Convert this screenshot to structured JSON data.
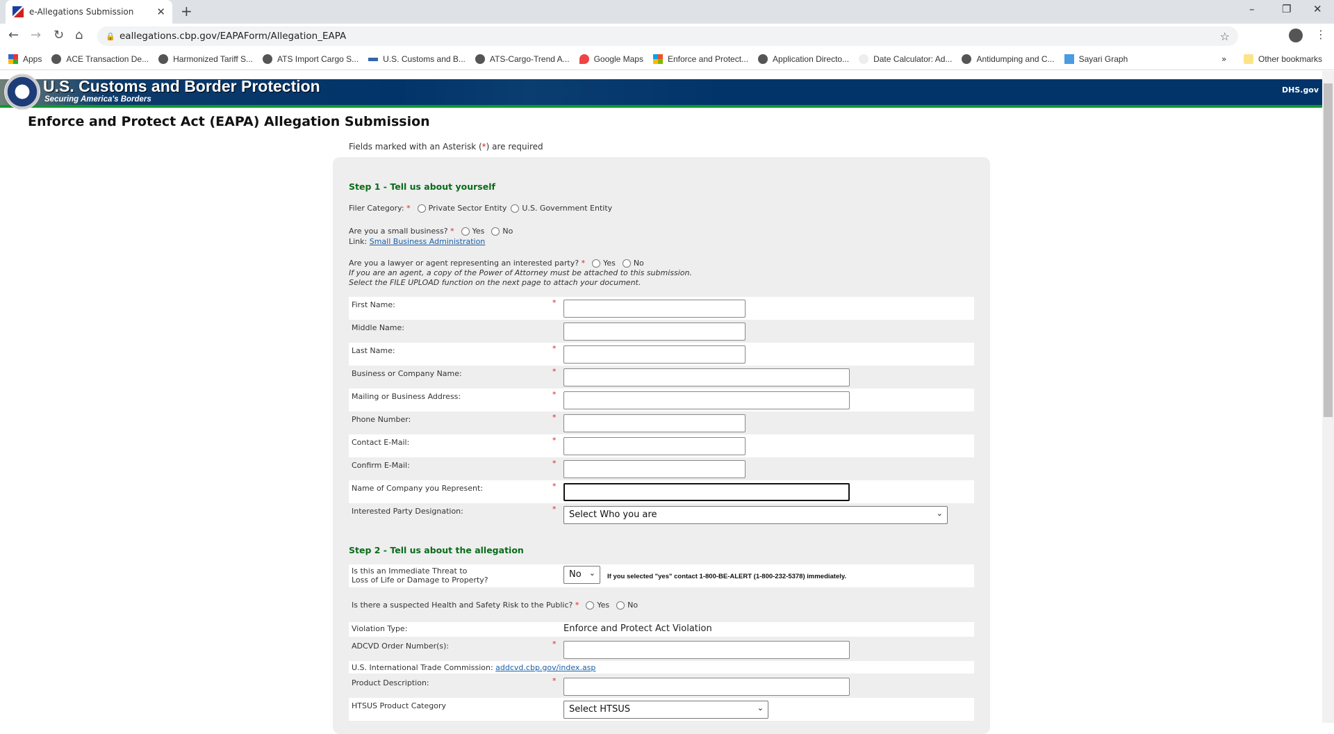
{
  "browser": {
    "tab_title": "e-Allegations Submission",
    "url": "eallegations.cbp.gov/EAPAForm/Allegation_EAPA",
    "bookmarks": [
      "Apps",
      "ACE Transaction De...",
      "Harmonized Tariff S...",
      "ATS Import Cargo S...",
      "U.S. Customs and B...",
      "ATS-Cargo-Trend A...",
      "Google Maps",
      "Enforce and Protect...",
      "Application Directo...",
      "Date Calculator: Ad...",
      "Antidumping and C...",
      "Sayari Graph"
    ],
    "more": "»",
    "other_bookmarks": "Other bookmarks"
  },
  "banner": {
    "title": "U.S. Customs and Border Protection",
    "subtitle": "Securing America's Borders",
    "dhs_link": "DHS.gov"
  },
  "page": {
    "title": "Enforce and Protect Act (EAPA) Allegation Submission",
    "required_note_pre": "Fields marked with an Asterisk (",
    "required_note_star": "*",
    "required_note_post": ") are required"
  },
  "step1": {
    "heading": "Step 1 - Tell us about yourself",
    "filer_label": "Filer Category:",
    "filer_options": [
      "Private Sector Entity",
      "U.S. Government Entity"
    ],
    "small_business_label": "Are you a small business?",
    "yes": "Yes",
    "no": "No",
    "link_label": "Link:",
    "sba_link": "Small Business Administration",
    "lawyer_label": "Are you a lawyer or agent representing an interested party?",
    "agent_note_1": "If you are an agent, a copy of the Power of Attorney must be attached to this submission.",
    "agent_note_2": "Select the FILE UPLOAD function on the next page to attach your document.",
    "fields": [
      {
        "label": "First Name:",
        "required": true,
        "value": ""
      },
      {
        "label": "Middle Name:",
        "required": false,
        "value": ""
      },
      {
        "label": "Last Name:",
        "required": true,
        "value": ""
      },
      {
        "label": "Business or Company Name:",
        "required": true,
        "value": ""
      },
      {
        "label": "Mailing or Business Address:",
        "required": true,
        "value": ""
      },
      {
        "label": "Phone Number:",
        "required": true,
        "value": ""
      },
      {
        "label": "Contact E-Mail:",
        "required": true,
        "value": ""
      },
      {
        "label": "Confirm E-Mail:",
        "required": true,
        "value": ""
      },
      {
        "label": "Name of Company you Represent:",
        "required": true,
        "value": ""
      },
      {
        "label": "Interested Party Designation:",
        "required": true,
        "value": "Select Who you are"
      }
    ]
  },
  "step2": {
    "heading": "Step 2 - Tell us about the allegation",
    "threat_label_1": "Is this an Immediate Threat to",
    "threat_label_2": "Loss of Life or Damage to Property?",
    "threat_value": "No",
    "threat_note": "If you selected \"yes\" contact 1-800-BE-ALERT (1-800-232-5378) immediately.",
    "health_label": "Is there a suspected Health and Safety Risk to the Public?",
    "yes": "Yes",
    "no": "No",
    "violation_label": "Violation Type:",
    "violation_value": "Enforce and Protect Act Violation",
    "adcvd_label": "ADCVD Order Number(s):",
    "itc_label": "U.S. International Trade Commission:",
    "itc_link": "addcvd.cbp.gov/index.asp",
    "product_label": "Product Description:",
    "htsus_label": "HTSUS Product Category",
    "htsus_value": "Select HTSUS"
  },
  "colors": {
    "banner": "#02346a",
    "accent_green": "#0a6b1a",
    "required": "#dd2222",
    "panel": "#eeeeee"
  }
}
